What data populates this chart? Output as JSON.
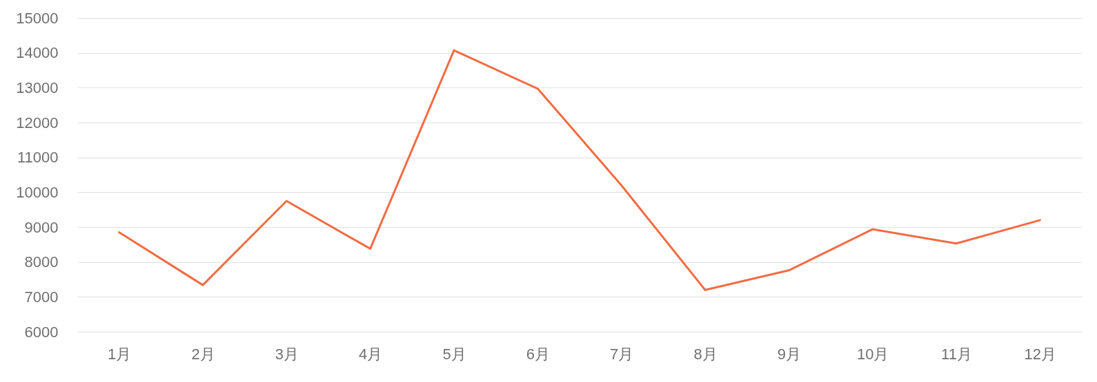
{
  "chart_data": {
    "type": "line",
    "categories": [
      "1月",
      "2月",
      "3月",
      "4月",
      "5月",
      "6月",
      "7月",
      "8月",
      "9月",
      "10月",
      "11月",
      "12月"
    ],
    "series": [
      {
        "color": "#f26b43",
        "values": [
          8850,
          7340,
          9750,
          8380,
          14070,
          12970,
          10200,
          7200,
          7760,
          8940,
          8530,
          9200
        ]
      }
    ],
    "ylim": [
      6000,
      15000
    ],
    "yticks": [
      6000,
      7000,
      8000,
      9000,
      10000,
      11000,
      12000,
      13000,
      14000,
      15000
    ],
    "grid": "y",
    "line_style": "solid"
  }
}
